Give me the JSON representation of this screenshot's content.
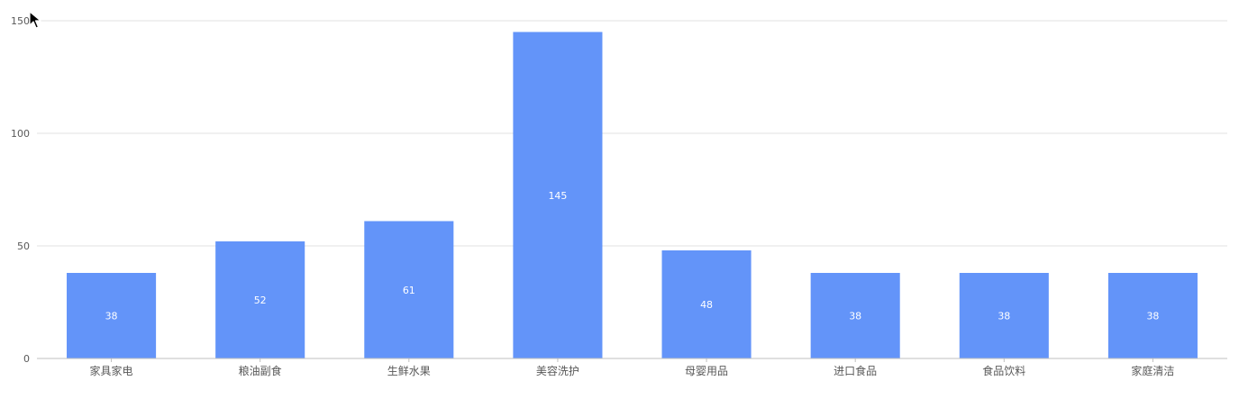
{
  "chart_data": {
    "type": "bar",
    "title": "",
    "xlabel": "",
    "ylabel": "",
    "categories": [
      "家具家电",
      "粮油副食",
      "生鲜水果",
      "美容洗护",
      "母婴用品",
      "进口食品",
      "食品饮料",
      "家庭清洁"
    ],
    "values": [
      38,
      52,
      61,
      145,
      48,
      38,
      38,
      38
    ],
    "ylim": [
      0,
      150
    ],
    "yticks": [
      0,
      50,
      100,
      150
    ],
    "grid": true,
    "legend": "none",
    "data_labels": true,
    "colors": {
      "bar": "#6394f9",
      "grid": "#e0e0e0",
      "axis": "#bfbfbf",
      "tick_text": "#595959",
      "data_label_text": "#ffffff"
    }
  },
  "cursor": {
    "icon": "mouse-pointer-icon"
  }
}
